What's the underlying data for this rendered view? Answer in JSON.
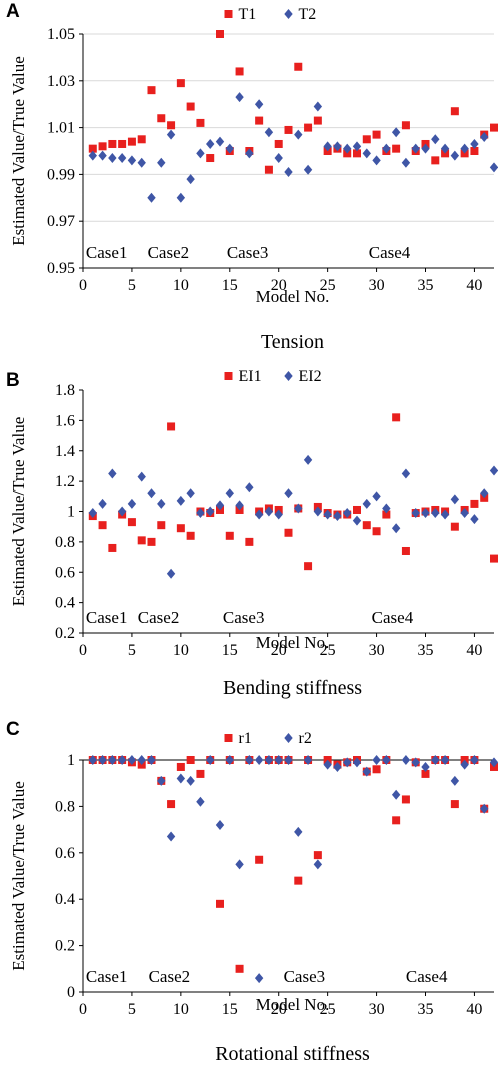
{
  "colors": {
    "series1": "#e8201e",
    "series2": "#3f56a6",
    "grid": "#d9d9d9",
    "axis": "#000000"
  },
  "chart_data": [
    {
      "panel": "A",
      "type": "scatter",
      "caption": "Tension",
      "xlabel": "Model No.",
      "ylabel": "Estimated Value/True Value",
      "xlim": [
        0,
        42
      ],
      "ylim": [
        0.95,
        1.05
      ],
      "xticks": [
        0,
        5,
        10,
        15,
        20,
        25,
        30,
        35,
        40
      ],
      "yticks": [
        0.95,
        0.97,
        0.99,
        1.01,
        1.03,
        1.05
      ],
      "ytick_labels": [
        "0.95",
        "0.97",
        "0.99",
        "1.01",
        "1.03",
        "1.05"
      ],
      "grid": "horizontal",
      "legend_position": "top-center",
      "cases": [
        {
          "label": "Case1",
          "x": 0.3
        },
        {
          "label": "Case2",
          "x": 6.6
        },
        {
          "label": "Case3",
          "x": 14.7
        },
        {
          "label": "Case4",
          "x": 29.2
        }
      ],
      "series": [
        {
          "name": "T1",
          "marker": "square",
          "x": [
            1,
            2,
            3,
            4,
            5,
            6,
            7,
            8,
            9,
            10,
            11,
            12,
            13,
            14,
            15,
            16,
            17,
            18,
            19,
            20,
            21,
            22,
            23,
            24,
            25,
            26,
            27,
            28,
            29,
            30,
            31,
            32,
            33,
            34,
            35,
            36,
            37,
            38,
            39,
            40,
            41,
            42
          ],
          "y": [
            1.001,
            1.002,
            1.003,
            1.003,
            1.004,
            1.005,
            1.026,
            1.014,
            1.011,
            1.029,
            1.019,
            1.012,
            0.997,
            1.05,
            1.0,
            1.034,
            1.0,
            1.013,
            0.992,
            1.003,
            1.009,
            1.036,
            1.01,
            1.013,
            1.0,
            1.001,
            0.999,
            0.999,
            1.005,
            1.007,
            1.0,
            1.001,
            1.011,
            1.0,
            1.003,
            0.996,
            0.999,
            1.017,
            0.999,
            1.0,
            1.007,
            1.01
          ]
        },
        {
          "name": "T2",
          "marker": "diamond",
          "x": [
            1,
            2,
            3,
            4,
            5,
            6,
            7,
            8,
            9,
            10,
            11,
            12,
            13,
            14,
            15,
            16,
            17,
            18,
            19,
            20,
            21,
            22,
            23,
            24,
            25,
            26,
            27,
            28,
            29,
            30,
            31,
            32,
            33,
            34,
            35,
            36,
            37,
            38,
            39,
            40,
            41,
            42
          ],
          "y": [
            0.998,
            0.998,
            0.997,
            0.997,
            0.996,
            0.995,
            0.98,
            0.995,
            1.007,
            0.98,
            0.988,
            0.999,
            1.003,
            1.004,
            1.001,
            1.023,
            0.999,
            1.02,
            1.008,
            0.997,
            0.991,
            1.007,
            0.992,
            1.019,
            1.002,
            1.002,
            1.001,
            1.002,
            0.999,
            0.996,
            1.001,
            1.008,
            0.995,
            1.001,
            1.001,
            1.005,
            1.001,
            0.998,
            1.001,
            1.003,
            1.006,
            0.993
          ]
        }
      ]
    },
    {
      "panel": "B",
      "type": "scatter",
      "caption": "Bending stiffness",
      "xlabel": "Model No.",
      "ylabel": "Estimated Value/True Value",
      "xlim": [
        0,
        42
      ],
      "ylim": [
        0.2,
        1.8
      ],
      "xticks": [
        0,
        5,
        10,
        15,
        20,
        25,
        30,
        35,
        40
      ],
      "yticks": [
        0.2,
        0.4,
        0.6,
        0.8,
        1.0,
        1.2,
        1.4,
        1.6,
        1.8
      ],
      "ytick_labels": [
        "0.2",
        "0.4",
        "0.6",
        "0.8",
        "1",
        "1.2",
        "1.4",
        "1.6",
        "1.8"
      ],
      "grid": "none",
      "legend_position": "top-center",
      "cases": [
        {
          "label": "Case1",
          "x": 0.3
        },
        {
          "label": "Case2",
          "x": 5.6
        },
        {
          "label": "Case3",
          "x": 14.3
        },
        {
          "label": "Case4",
          "x": 29.5
        }
      ],
      "series": [
        {
          "name": "EI1",
          "marker": "square",
          "x": [
            1,
            2,
            3,
            4,
            5,
            6,
            7,
            8,
            9,
            10,
            11,
            12,
            13,
            14,
            15,
            16,
            17,
            18,
            19,
            20,
            21,
            22,
            23,
            24,
            25,
            26,
            27,
            28,
            29,
            30,
            31,
            32,
            33,
            34,
            35,
            36,
            37,
            38,
            39,
            40,
            41,
            42
          ],
          "y": [
            0.97,
            0.91,
            0.76,
            0.98,
            0.93,
            0.81,
            0.8,
            0.91,
            1.56,
            0.89,
            0.84,
            1.0,
            0.99,
            1.01,
            0.84,
            1.01,
            0.8,
            1.0,
            1.02,
            1.01,
            0.86,
            1.02,
            0.64,
            1.03,
            0.99,
            0.98,
            0.98,
            1.01,
            0.91,
            0.87,
            0.98,
            1.62,
            0.74,
            0.99,
            1.0,
            1.01,
            1.0,
            0.9,
            1.01,
            1.05,
            1.09,
            0.69
          ]
        },
        {
          "name": "EI2",
          "marker": "diamond",
          "x": [
            1,
            2,
            3,
            4,
            5,
            6,
            7,
            8,
            9,
            10,
            11,
            12,
            13,
            14,
            15,
            16,
            17,
            18,
            19,
            20,
            21,
            22,
            23,
            24,
            25,
            26,
            27,
            28,
            29,
            30,
            31,
            32,
            33,
            34,
            35,
            36,
            37,
            38,
            39,
            40,
            41,
            42
          ],
          "y": [
            0.99,
            1.05,
            1.25,
            1.0,
            1.05,
            1.23,
            1.12,
            1.05,
            0.59,
            1.07,
            1.12,
            0.99,
            1.0,
            1.04,
            1.12,
            1.04,
            1.16,
            0.98,
            1.0,
            0.98,
            1.12,
            1.02,
            1.34,
            1.0,
            0.98,
            0.97,
            0.99,
            0.94,
            1.05,
            1.1,
            1.02,
            0.89,
            1.25,
            0.99,
            0.99,
            0.99,
            0.98,
            1.08,
            0.99,
            0.95,
            1.12,
            1.27
          ]
        }
      ]
    },
    {
      "panel": "C",
      "type": "scatter",
      "caption": "Rotational stiffness",
      "xlabel": "Model No.",
      "ylabel": "Estimated Value/True Value",
      "xlim": [
        0,
        42
      ],
      "ylim": [
        0,
        1
      ],
      "xticks": [
        0,
        5,
        10,
        15,
        20,
        25,
        30,
        35,
        40
      ],
      "yticks": [
        0,
        0.2,
        0.4,
        0.6,
        0.8,
        1.0
      ],
      "ytick_labels": [
        "0",
        "0.2",
        "0.4",
        "0.6",
        "0.8",
        "1"
      ],
      "grid": "none",
      "legend_position": "top-center",
      "cases": [
        {
          "label": "Case1",
          "x": 0.3
        },
        {
          "label": "Case2",
          "x": 6.7
        },
        {
          "label": "Case3",
          "x": 20.5
        },
        {
          "label": "Case4",
          "x": 33.0
        }
      ],
      "stray_marker": {
        "series": 1,
        "x": 18,
        "y": 0.06
      },
      "series": [
        {
          "name": "r1",
          "marker": "square",
          "x": [
            1,
            2,
            3,
            4,
            5,
            6,
            7,
            8,
            9,
            10,
            11,
            12,
            13,
            14,
            15,
            16,
            17,
            18,
            19,
            20,
            21,
            22,
            23,
            24,
            25,
            26,
            27,
            28,
            29,
            30,
            31,
            32,
            33,
            34,
            35,
            36,
            37,
            38,
            39,
            40,
            41,
            42
          ],
          "y": [
            1.0,
            1.0,
            1.0,
            1.0,
            0.99,
            0.98,
            1.0,
            0.91,
            0.81,
            0.97,
            1.0,
            0.94,
            1.0,
            0.38,
            1.0,
            0.1,
            1.0,
            0.57,
            1.0,
            1.0,
            1.0,
            0.48,
            1.0,
            0.59,
            1.0,
            0.98,
            0.99,
            1.0,
            0.95,
            0.96,
            1.0,
            0.74,
            0.83,
            0.99,
            0.94,
            1.0,
            1.0,
            0.81,
            1.0,
            1.0,
            0.79,
            0.97
          ]
        },
        {
          "name": "r2",
          "marker": "diamond",
          "x": [
            1,
            2,
            3,
            4,
            5,
            6,
            7,
            8,
            9,
            10,
            11,
            12,
            13,
            14,
            15,
            16,
            17,
            18,
            19,
            20,
            21,
            22,
            23,
            24,
            25,
            26,
            27,
            28,
            29,
            30,
            31,
            32,
            33,
            34,
            35,
            36,
            37,
            38,
            39,
            40,
            41,
            42
          ],
          "y": [
            1.0,
            1.0,
            1.0,
            1.0,
            1.0,
            1.0,
            1.0,
            0.91,
            0.67,
            0.92,
            0.91,
            0.82,
            1.0,
            0.72,
            1.0,
            0.55,
            1.0,
            1.0,
            1.0,
            1.0,
            1.0,
            0.69,
            1.0,
            0.55,
            0.98,
            0.97,
            0.99,
            0.99,
            0.95,
            1.0,
            1.0,
            0.85,
            1.0,
            0.99,
            0.97,
            1.0,
            1.0,
            0.91,
            0.98,
            1.0,
            0.79,
            0.99
          ]
        }
      ]
    }
  ]
}
